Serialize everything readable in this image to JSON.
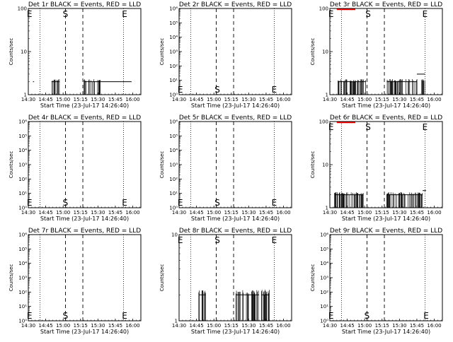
{
  "shared": {
    "ylabel": "Counts/sec",
    "xlabel": "Start Time (23-Jul-17 14:26:40)",
    "xticks": [
      "14:30",
      "14:45",
      "15:00",
      "15:15",
      "15:30",
      "15:45",
      "16:00"
    ],
    "xtick_minutes": [
      30,
      45,
      60,
      75,
      90,
      105,
      120
    ],
    "xlim": [
      30,
      127
    ],
    "vlines_dotted_min": [
      40,
      112
    ],
    "vlines_dashed_min": [
      62,
      77
    ]
  },
  "chart_data": [
    {
      "type": "line",
      "title": "Det 1r BLACK = Events, RED = LLD",
      "yscale": "log",
      "ylim": [
        1,
        100
      ],
      "yticks": [
        {
          "v": 1,
          "label": "1"
        },
        {
          "v": 10,
          "label": "10"
        },
        {
          "v": 100,
          "label": "100"
        }
      ],
      "markers": [
        {
          "text": "E",
          "x": 31,
          "pos": "top"
        },
        {
          "text": "S",
          "x": 62,
          "pos": "top"
        },
        {
          "text": "E",
          "x": 113,
          "pos": "top"
        }
      ],
      "series": [
        {
          "color": "#000000",
          "segments": [
            {
              "x0": 34,
              "x1": 35,
              "y": 2
            },
            {
              "x0": 50,
              "x1": 57,
              "y": 2
            },
            {
              "x0": 78,
              "x1": 119,
              "y": 2
            },
            {
              "x0": 78.3,
              "x1": 78.6,
              "y": 3
            }
          ],
          "noisy": [
            [
              50,
              57
            ],
            [
              78,
              92
            ]
          ]
        }
      ]
    },
    {
      "type": "line",
      "title": "Det 2r BLACK = Events, RED = LLD",
      "yscale": "log",
      "ylim": [
        1,
        1000000
      ],
      "yticks": [
        {
          "v": 1,
          "label": "10⁰"
        },
        {
          "v": 10,
          "label": "10¹"
        },
        {
          "v": 100,
          "label": "10²"
        },
        {
          "v": 1000,
          "label": "10³"
        },
        {
          "v": 10000,
          "label": "10⁴"
        },
        {
          "v": 100000,
          "label": "10⁵"
        },
        {
          "v": 1000000,
          "label": "10⁶"
        }
      ],
      "markers": [
        {
          "text": "E",
          "x": 31,
          "pos": "bottom"
        },
        {
          "text": "S",
          "x": 63,
          "pos": "bottom"
        },
        {
          "text": "E",
          "x": 112,
          "pos": "bottom"
        }
      ],
      "series": []
    },
    {
      "type": "line",
      "title": "Det 3r BLACK = Events, RED = LLD",
      "yscale": "log",
      "ylim": [
        1,
        100
      ],
      "yticks": [
        {
          "v": 1,
          "label": "1"
        },
        {
          "v": 10,
          "label": "10"
        },
        {
          "v": 100,
          "label": "100"
        }
      ],
      "markers": [
        {
          "text": "E",
          "x": 31,
          "pos": "top"
        },
        {
          "text": "S",
          "x": 63,
          "pos": "top"
        },
        {
          "text": "E",
          "x": 112,
          "pos": "top"
        }
      ],
      "series": [
        {
          "color": "#000000",
          "segments": [
            {
              "x0": 37,
              "x1": 61,
              "y": 2
            },
            {
              "x0": 79,
              "x1": 105,
              "y": 2
            },
            {
              "x0": 105,
              "x1": 112,
              "y": 3
            }
          ],
          "noisy": [
            [
              37,
              61
            ],
            [
              79,
              112
            ]
          ]
        },
        {
          "color": "#ff0000",
          "segments": [
            {
              "x0": 36,
              "x1": 52,
              "y": 95
            }
          ],
          "noisy": []
        }
      ]
    },
    {
      "type": "line",
      "title": "Det 4r BLACK = Events, RED = LLD",
      "yscale": "log",
      "ylim": [
        1,
        1000000
      ],
      "yticks": [
        {
          "v": 1,
          "label": "10⁰"
        },
        {
          "v": 10,
          "label": "10¹"
        },
        {
          "v": 100,
          "label": "10²"
        },
        {
          "v": 1000,
          "label": "10³"
        },
        {
          "v": 10000,
          "label": "10⁴"
        },
        {
          "v": 100000,
          "label": "10⁵"
        },
        {
          "v": 1000000,
          "label": "10⁶"
        }
      ],
      "markers": [
        {
          "text": "E",
          "x": 31,
          "pos": "bottom"
        },
        {
          "text": "S",
          "x": 62,
          "pos": "bottom"
        },
        {
          "text": "E",
          "x": 113,
          "pos": "bottom"
        }
      ],
      "series": []
    },
    {
      "type": "line",
      "title": "Det 5r BLACK = Events, RED = LLD",
      "yscale": "log",
      "ylim": [
        1,
        1000000
      ],
      "yticks": [
        {
          "v": 1,
          "label": "10⁰"
        },
        {
          "v": 10,
          "label": "10¹"
        },
        {
          "v": 100,
          "label": "10²"
        },
        {
          "v": 1000,
          "label": "10³"
        },
        {
          "v": 10000,
          "label": "10⁴"
        },
        {
          "v": 100000,
          "label": "10⁵"
        },
        {
          "v": 1000000,
          "label": "10⁶"
        }
      ],
      "markers": [
        {
          "text": "E",
          "x": 31,
          "pos": "bottom"
        },
        {
          "text": "S",
          "x": 63,
          "pos": "bottom"
        },
        {
          "text": "E",
          "x": 112,
          "pos": "bottom"
        }
      ],
      "series": []
    },
    {
      "type": "line",
      "title": "Det 6r BLACK = Events, RED = LLD",
      "yscale": "log",
      "ylim": [
        1,
        100
      ],
      "yticks": [
        {
          "v": 1,
          "label": "1"
        },
        {
          "v": 10,
          "label": "10"
        },
        {
          "v": 100,
          "label": "100"
        }
      ],
      "markers": [
        {
          "text": "E",
          "x": 31,
          "pos": "top"
        },
        {
          "text": "S",
          "x": 63,
          "pos": "top"
        },
        {
          "text": "E",
          "x": 112,
          "pos": "top"
        }
      ],
      "series": [
        {
          "color": "#000000",
          "segments": [
            {
              "x0": 34,
              "x1": 59,
              "y": 2
            },
            {
              "x0": 79,
              "x1": 110,
              "y": 2
            },
            {
              "x0": 110,
              "x1": 113,
              "y": 2.5
            }
          ],
          "noisy": [
            [
              34,
              59
            ],
            [
              79,
              110
            ]
          ]
        },
        {
          "color": "#ff0000",
          "segments": [
            {
              "x0": 36,
              "x1": 52,
              "y": 95
            }
          ],
          "noisy": []
        }
      ]
    },
    {
      "type": "line",
      "title": "Det 7r BLACK = Events, RED = LLD",
      "yscale": "log",
      "ylim": [
        1,
        1000000
      ],
      "yticks": [
        {
          "v": 1,
          "label": "10⁰"
        },
        {
          "v": 10,
          "label": "10¹"
        },
        {
          "v": 100,
          "label": "10²"
        },
        {
          "v": 1000,
          "label": "10³"
        },
        {
          "v": 10000,
          "label": "10⁴"
        },
        {
          "v": 100000,
          "label": "10⁵"
        },
        {
          "v": 1000000,
          "label": "10⁶"
        }
      ],
      "markers": [
        {
          "text": "E",
          "x": 31,
          "pos": "bottom"
        },
        {
          "text": "S",
          "x": 62,
          "pos": "bottom"
        },
        {
          "text": "E",
          "x": 113,
          "pos": "bottom"
        }
      ],
      "series": []
    },
    {
      "type": "line",
      "title": "Det 8r BLACK = Events, RED = LLD",
      "yscale": "log",
      "ylim": [
        1,
        10
      ],
      "yticks": [
        {
          "v": 1,
          "label": "1"
        },
        {
          "v": 10,
          "label": "10"
        }
      ],
      "markers": [
        {
          "text": "E",
          "x": 31,
          "pos": "top"
        },
        {
          "text": "S",
          "x": 63,
          "pos": "top"
        },
        {
          "text": "E",
          "x": 112,
          "pos": "top"
        }
      ],
      "series": [
        {
          "color": "#000000",
          "segments": [
            {
              "x0": 47,
              "x1": 53,
              "y": 2
            },
            {
              "x0": 79,
              "x1": 99,
              "y": 2
            },
            {
              "x0": 101,
              "x1": 108,
              "y": 2
            }
          ],
          "noisy": [
            [
              47,
              53
            ],
            [
              79,
              99
            ],
            [
              101,
              108
            ]
          ]
        }
      ]
    },
    {
      "type": "line",
      "title": "Det 9r BLACK = Events, RED = LLD",
      "yscale": "log",
      "ylim": [
        1,
        1000000
      ],
      "yticks": [
        {
          "v": 1,
          "label": "10⁰"
        },
        {
          "v": 10,
          "label": "10¹"
        },
        {
          "v": 100,
          "label": "10²"
        },
        {
          "v": 1000,
          "label": "10³"
        },
        {
          "v": 10000,
          "label": "10⁴"
        },
        {
          "v": 100000,
          "label": "10⁵"
        },
        {
          "v": 1000000,
          "label": "10⁶"
        }
      ],
      "markers": [
        {
          "text": "E",
          "x": 31,
          "pos": "bottom"
        },
        {
          "text": "S",
          "x": 62,
          "pos": "bottom"
        },
        {
          "text": "E",
          "x": 113,
          "pos": "bottom"
        }
      ],
      "series": []
    }
  ]
}
